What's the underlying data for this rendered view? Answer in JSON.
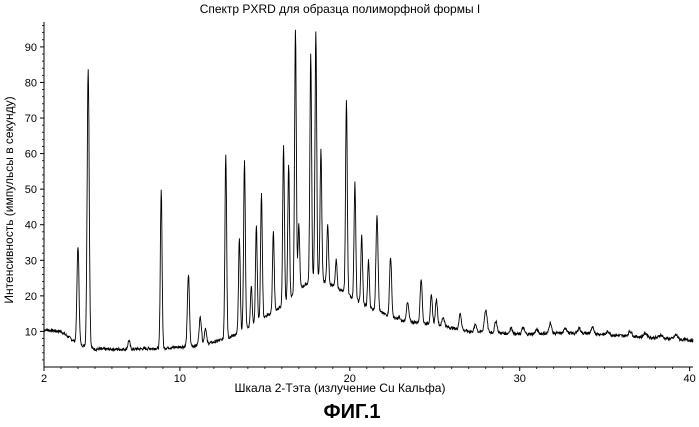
{
  "chart_data": {
    "type": "line",
    "title": "Спектр PXRD для образца полиморфной формы I",
    "xlabel": "Шкала 2-Тэта (излучение Cu Кальфа)",
    "ylabel": "Интенсивность (импульсы в секунду)",
    "xlim": [
      2,
      40.2
    ],
    "ylim": [
      0,
      97
    ],
    "x_ticks": [
      2,
      10,
      20,
      30,
      40
    ],
    "y_ticks": [
      10,
      20,
      30,
      40,
      50,
      60,
      70,
      80,
      90
    ],
    "grid": false,
    "series": [
      {
        "baseline": [
          [
            2,
            10.5
          ],
          [
            3,
            10
          ],
          [
            4,
            6.5
          ],
          [
            5,
            5
          ],
          [
            7,
            5
          ],
          [
            9,
            5.3
          ],
          [
            11,
            6
          ],
          [
            12,
            7
          ],
          [
            13,
            8.5
          ],
          [
            14,
            11
          ],
          [
            15,
            14
          ],
          [
            16,
            17
          ],
          [
            17,
            22
          ],
          [
            18,
            25
          ],
          [
            19,
            23
          ],
          [
            20,
            20
          ],
          [
            21,
            17
          ],
          [
            22,
            15
          ],
          [
            23,
            13
          ],
          [
            24,
            12.5
          ],
          [
            25,
            12
          ],
          [
            26,
            11
          ],
          [
            27,
            10
          ],
          [
            28,
            9.8
          ],
          [
            30,
            9.2
          ],
          [
            32,
            9.5
          ],
          [
            34,
            9.5
          ],
          [
            36,
            8.8
          ],
          [
            38,
            8.2
          ],
          [
            40.2,
            7.5
          ]
        ],
        "peaks": [
          [
            4.0,
            34,
            0.06
          ],
          [
            4.6,
            84,
            0.06
          ],
          [
            7.0,
            7.5,
            0.06
          ],
          [
            8.9,
            50,
            0.05
          ],
          [
            10.5,
            26,
            0.06
          ],
          [
            11.2,
            14,
            0.07
          ],
          [
            11.5,
            11,
            0.06
          ],
          [
            12.7,
            60,
            0.05
          ],
          [
            13.5,
            36,
            0.05
          ],
          [
            13.8,
            58,
            0.05
          ],
          [
            14.2,
            23,
            0.05
          ],
          [
            14.5,
            40,
            0.05
          ],
          [
            14.8,
            49,
            0.05
          ],
          [
            15.5,
            38,
            0.05
          ],
          [
            16.1,
            62,
            0.05
          ],
          [
            16.4,
            57,
            0.05
          ],
          [
            16.8,
            95,
            0.05
          ],
          [
            17.0,
            40,
            0.05
          ],
          [
            17.7,
            88,
            0.05
          ],
          [
            18.0,
            94,
            0.05
          ],
          [
            18.3,
            61,
            0.05
          ],
          [
            18.7,
            40,
            0.05
          ],
          [
            19.2,
            30,
            0.05
          ],
          [
            19.8,
            75,
            0.05
          ],
          [
            20.3,
            52,
            0.05
          ],
          [
            20.7,
            37,
            0.05
          ],
          [
            21.1,
            30,
            0.05
          ],
          [
            21.6,
            43,
            0.06
          ],
          [
            22.4,
            31,
            0.06
          ],
          [
            22.9,
            14,
            0.06
          ],
          [
            23.4,
            18,
            0.07
          ],
          [
            24.2,
            25,
            0.06
          ],
          [
            24.8,
            20,
            0.06
          ],
          [
            25.1,
            19,
            0.06
          ],
          [
            25.5,
            14,
            0.07
          ],
          [
            26.5,
            15,
            0.07
          ],
          [
            27.4,
            12,
            0.07
          ],
          [
            28.0,
            16,
            0.08
          ],
          [
            28.6,
            13,
            0.07
          ],
          [
            29.5,
            11,
            0.08
          ],
          [
            30.2,
            11,
            0.08
          ],
          [
            31.0,
            10.5,
            0.08
          ],
          [
            31.8,
            12.5,
            0.07
          ],
          [
            32.7,
            11,
            0.08
          ],
          [
            33.5,
            11,
            0.08
          ],
          [
            34.3,
            11,
            0.08
          ],
          [
            35.2,
            10,
            0.08
          ],
          [
            36.5,
            10,
            0.1
          ],
          [
            37.4,
            9.5,
            0.1
          ],
          [
            38.3,
            9,
            0.1
          ],
          [
            39.2,
            9,
            0.1
          ]
        ]
      }
    ]
  },
  "figure_label": "ФИГ.1",
  "colors": {
    "line": "#000000",
    "axis": "#000000",
    "background": "#ffffff"
  }
}
